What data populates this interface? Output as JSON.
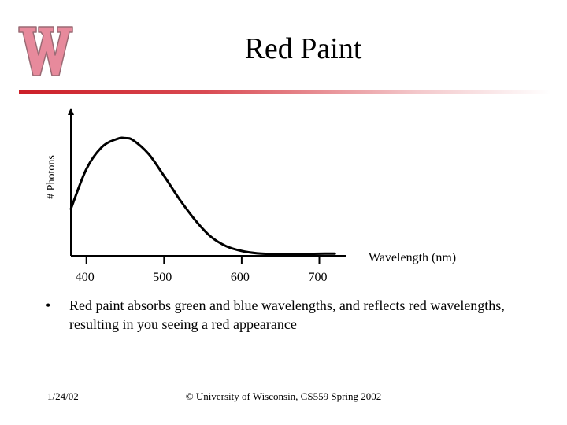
{
  "slide": {
    "title": "Red Paint",
    "bullets": [
      {
        "marker": "•",
        "text": "Red paint absorbs green and blue wavelengths, and reflects red wavelengths, resulting in you seeing a red appearance"
      }
    ],
    "footer": {
      "date": "1/24/02",
      "copyright": "© University of Wisconsin, CS559 Spring 2002"
    },
    "logo": {
      "name": "university-of-wisconsin-w-logo",
      "color": "#e78a9c"
    },
    "accent_color": "#cc1f28"
  },
  "chart_data": {
    "type": "line",
    "title": "",
    "xlabel": "Wavelength (nm)",
    "ylabel": "# Photons",
    "xlim": [
      380,
      735
    ],
    "ylim": [
      0,
      1
    ],
    "x_ticks": [
      400,
      500,
      600,
      700
    ],
    "x_tick_labels": [
      "400",
      "500",
      "600",
      "700"
    ],
    "grid": false,
    "legend": "none",
    "series": [
      {
        "color": "#000000",
        "x": [
          380,
          400,
          420,
          440,
          450,
          460,
          480,
          500,
          520,
          540,
          560,
          580,
          600,
          620,
          640,
          660,
          680,
          700,
          720
        ],
        "y": [
          0.34,
          0.63,
          0.79,
          0.85,
          0.855,
          0.84,
          0.74,
          0.58,
          0.41,
          0.26,
          0.14,
          0.07,
          0.035,
          0.018,
          0.012,
          0.012,
          0.013,
          0.015,
          0.016
        ]
      }
    ]
  }
}
